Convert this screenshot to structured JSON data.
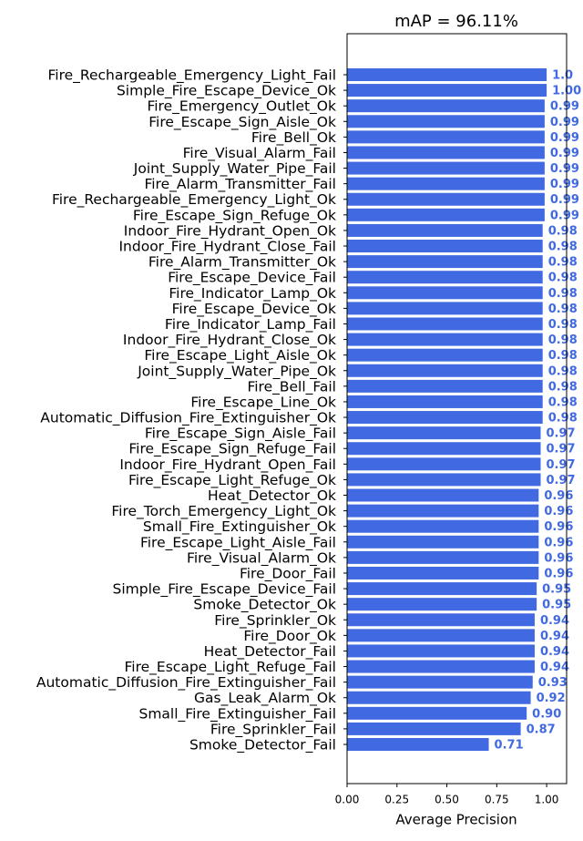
{
  "chart_data": {
    "type": "barh",
    "title": "mAP = 96.11%",
    "xlabel": "Average Precision",
    "categories": [
      "Fire_Rechargeable_Emergency_Light_Fail",
      "Simple_Fire_Escape_Device_Ok",
      "Fire_Emergency_Outlet_Ok",
      "Fire_Escape_Sign_Aisle_Ok",
      "Fire_Bell_Ok",
      "Fire_Visual_Alarm_Fail",
      "Joint_Supply_Water_Pipe_Fail",
      "Fire_Alarm_Transmitter_Fail",
      "Fire_Rechargeable_Emergency_Light_Ok",
      "Fire_Escape_Sign_Refuge_Ok",
      "Indoor_Fire_Hydrant_Open_Ok",
      "Indoor_Fire_Hydrant_Close_Fail",
      "Fire_Alarm_Transmitter_Ok",
      "Fire_Escape_Device_Fail",
      "Fire_Indicator_Lamp_Ok",
      "Fire_Escape_Device_Ok",
      "Fire_Indicator_Lamp_Fail",
      "Indoor_Fire_Hydrant_Close_Ok",
      "Fire_Escape_Light_Aisle_Ok",
      "Joint_Supply_Water_Pipe_Ok",
      "Fire_Bell_Fail",
      "Fire_Escape_Line_Ok",
      "Automatic_Diffusion_Fire_Extinguisher_Ok",
      "Fire_Escape_Sign_Aisle_Fail",
      "Fire_Escape_Sign_Refuge_Fail",
      "Indoor_Fire_Hydrant_Open_Fail",
      "Fire_Escape_Light_Refuge_Ok",
      "Heat_Detector_Ok",
      "Fire_Torch_Emergency_Light_Ok",
      "Small_Fire_Extinguisher_Ok",
      "Fire_Escape_Light_Aisle_Fail",
      "Fire_Visual_Alarm_Ok",
      "Fire_Door_Fail",
      "Simple_Fire_Escape_Device_Fail",
      "Smoke_Detector_Ok",
      "Fire_Sprinkler_Ok",
      "Fire_Door_Ok",
      "Heat_Detector_Fail",
      "Fire_Escape_Light_Refuge_Fail",
      "Automatic_Diffusion_Fire_Extinguisher_Fail",
      "Gas_Leak_Alarm_Ok",
      "Small_Fire_Extinguisher_Fail",
      "Fire_Sprinkler_Fail",
      "Smoke_Detector_Fail"
    ],
    "values": [
      1.0,
      1.0,
      0.99,
      0.99,
      0.99,
      0.99,
      0.99,
      0.99,
      0.99,
      0.99,
      0.98,
      0.98,
      0.98,
      0.98,
      0.98,
      0.98,
      0.98,
      0.98,
      0.98,
      0.98,
      0.98,
      0.98,
      0.98,
      0.97,
      0.97,
      0.97,
      0.97,
      0.96,
      0.96,
      0.96,
      0.96,
      0.96,
      0.96,
      0.95,
      0.95,
      0.94,
      0.94,
      0.94,
      0.94,
      0.93,
      0.92,
      0.9,
      0.87,
      0.71
    ],
    "value_labels": [
      "1.0",
      "1.00",
      "0.99",
      "0.99",
      "0.99",
      "0.99",
      "0.99",
      "0.99",
      "0.99",
      "0.99",
      "0.98",
      "0.98",
      "0.98",
      "0.98",
      "0.98",
      "0.98",
      "0.98",
      "0.98",
      "0.98",
      "0.98",
      "0.98",
      "0.98",
      "0.98",
      "0.97",
      "0.97",
      "0.97",
      "0.97",
      "0.96",
      "0.96",
      "0.96",
      "0.96",
      "0.96",
      "0.96",
      "0.95",
      "0.95",
      "0.94",
      "0.94",
      "0.94",
      "0.94",
      "0.93",
      "0.92",
      "0.90",
      "0.87",
      "0.71"
    ],
    "color": "#4169e1",
    "xlim": [
      0,
      1.1
    ],
    "xticks": [
      {
        "value": 0,
        "label": "0.00"
      },
      {
        "value": 0.25,
        "label": "0.25"
      },
      {
        "value": 0.5,
        "label": "0.50"
      },
      {
        "value": 0.75,
        "label": "0.75"
      },
      {
        "value": 1,
        "label": "1.00"
      }
    ]
  }
}
